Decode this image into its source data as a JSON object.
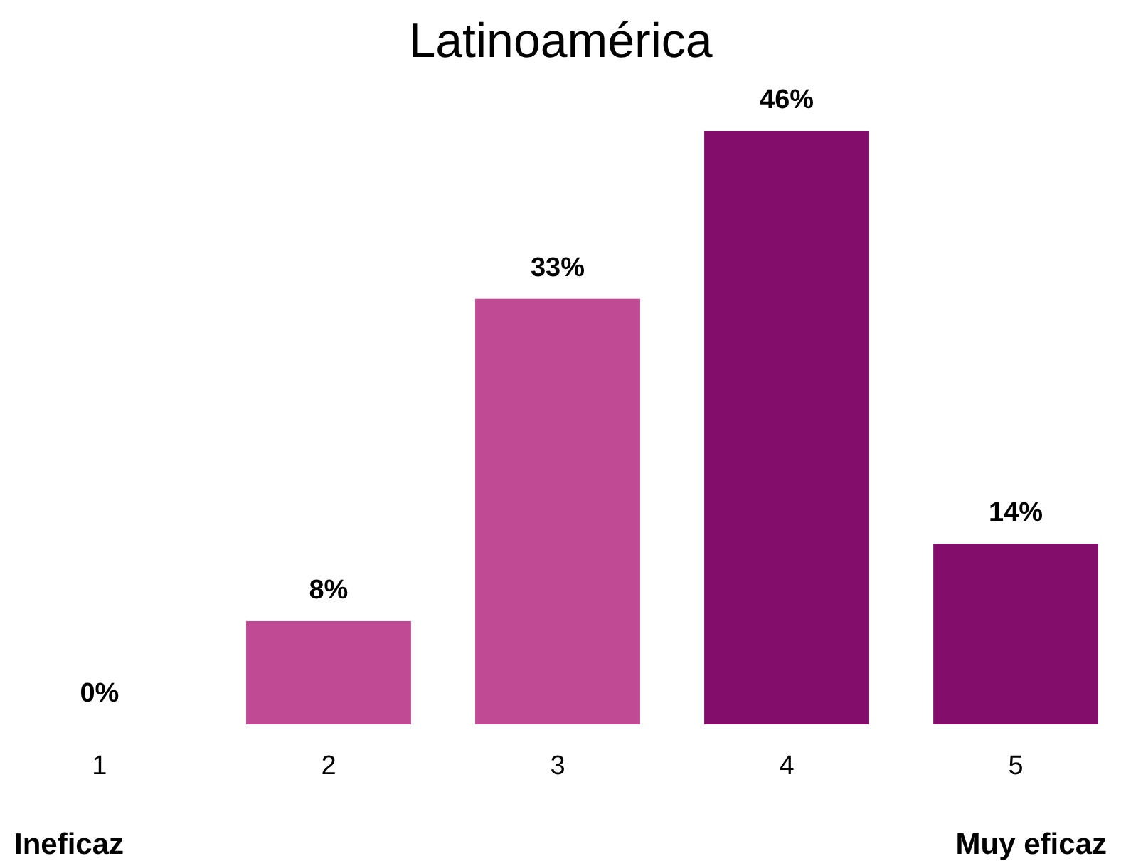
{
  "chart_data": {
    "type": "bar",
    "title": "Latinoamérica",
    "categories": [
      "1",
      "2",
      "3",
      "4",
      "5"
    ],
    "values": [
      0,
      8,
      33,
      46,
      14
    ],
    "colors": [
      "#c04a94",
      "#c04a94",
      "#c04a94",
      "#820d6b",
      "#820d6b"
    ],
    "data_labels": true,
    "value_labels": [
      "0%",
      "8%",
      "33%",
      "46%",
      "14%"
    ],
    "annotations": [
      "Ineficaz",
      "Muy eficaz"
    ]
  }
}
